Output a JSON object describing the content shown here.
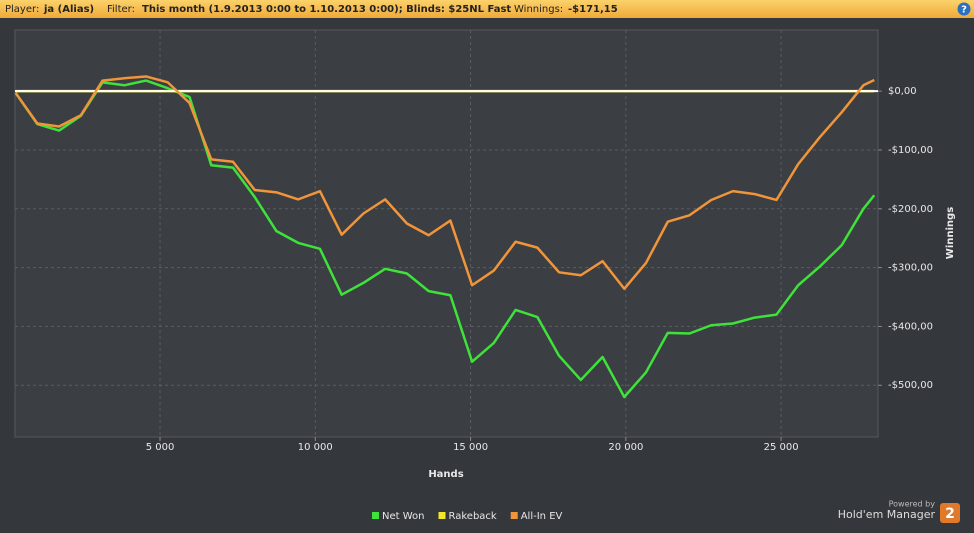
{
  "header": {
    "player_label": "Player:",
    "player": "ja (Alias)",
    "filter_label": "Filter:",
    "filter": "This month (1.9.2013 0:00 to 1.10.2013 0:00); Blinds: $25NL Fast",
    "winnings_label": "Winnings:",
    "winnings": "-$171,15",
    "help": "?"
  },
  "footer": {
    "powered_by": "Powered by",
    "product": "Hold'em Manager",
    "version": "2"
  },
  "chart_data": {
    "type": "line",
    "xlabel": "Hands",
    "ylabel": "Winnings",
    "grid": true,
    "legend": "bottom",
    "x": [
      350,
      1050,
      1750,
      2450,
      3150,
      3850,
      4550,
      5250,
      5950,
      6650,
      7350,
      8050,
      8750,
      9450,
      10150,
      10850,
      11550,
      12250,
      12950,
      13650,
      14350,
      15050,
      15750,
      16450,
      17150,
      17850,
      18550,
      19250,
      19950,
      20650,
      21350,
      22050,
      22750,
      23450,
      24150,
      24850,
      25550,
      26250,
      26950,
      27650,
      28000
    ],
    "series": [
      {
        "name": "Net Won",
        "color": "#3ee23a",
        "values": [
          -3,
          -56,
          -67,
          -42,
          15,
          10,
          18,
          5,
          -10,
          -126,
          -130,
          -180,
          -238,
          -258,
          -268,
          -346,
          -326,
          -302,
          -310,
          -340,
          -347,
          -460,
          -428,
          -372,
          -384,
          -450,
          -491,
          -452,
          -520,
          -478,
          -411,
          -412,
          -398,
          -395,
          -385,
          -380,
          -330,
          -298,
          -262,
          -200,
          -177
        ]
      },
      {
        "name": "Rakeback",
        "color": "#f2e62c",
        "values": [
          0,
          0,
          0,
          0,
          0,
          0,
          0,
          0,
          0,
          0,
          0,
          0,
          0,
          0,
          0,
          0,
          0,
          0,
          0,
          0,
          0,
          0,
          0,
          0,
          0,
          0,
          0,
          0,
          0,
          0,
          0,
          0,
          0,
          0,
          0,
          0,
          0,
          0,
          0,
          0,
          0
        ]
      },
      {
        "name": "All-In EV",
        "color": "#f0953a",
        "values": [
          -3,
          -55,
          -60,
          -41,
          18,
          22,
          25,
          15,
          -20,
          -116,
          -120,
          -168,
          -172,
          -184,
          -170,
          -244,
          -208,
          -184,
          -225,
          -245,
          -220,
          -330,
          -305,
          -256,
          -266,
          -308,
          -313,
          -289,
          -336,
          -292,
          -222,
          -211,
          -185,
          -170,
          -175,
          -185,
          -124,
          -78,
          -36,
          10,
          19
        ]
      }
    ],
    "xlim": [
      330,
      28120
    ],
    "xticks": [
      {
        "value": 5000,
        "label": "5 000"
      },
      {
        "value": 10000,
        "label": "10 000"
      },
      {
        "value": 15000,
        "label": "15 000"
      },
      {
        "value": 20000,
        "label": "20 000"
      },
      {
        "value": 25000,
        "label": "25 000"
      }
    ],
    "ylim": [
      -588,
      104
    ],
    "yticks": [
      {
        "value": 0,
        "label": "$0,00"
      },
      {
        "value": -100,
        "label": "-$100,00"
      },
      {
        "value": -200,
        "label": "-$200,00"
      },
      {
        "value": -300,
        "label": "-$300,00"
      },
      {
        "value": -400,
        "label": "-$400,00"
      },
      {
        "value": -500,
        "label": "-$500,00"
      }
    ]
  }
}
